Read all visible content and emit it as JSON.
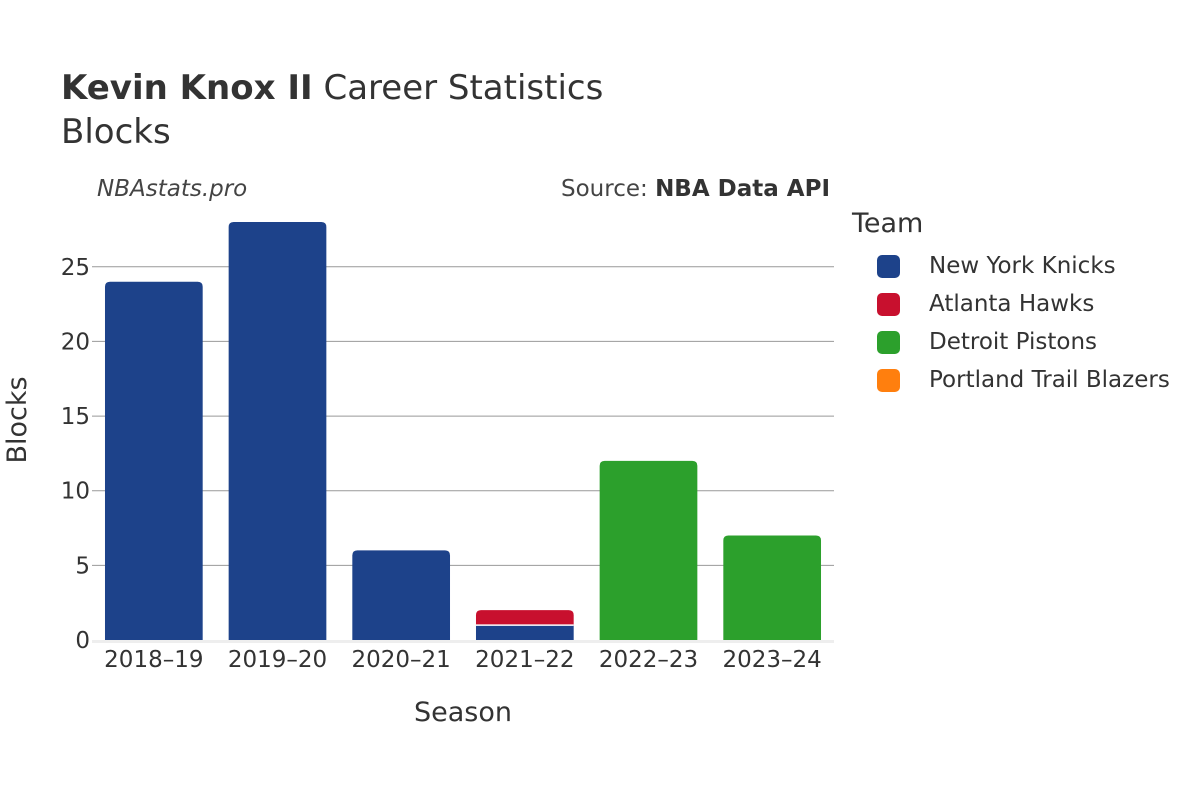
{
  "header": {
    "title_bold": "Kevin Knox II",
    "title_rest": "Career Statistics",
    "subtitle": "Blocks"
  },
  "watermark": "NBAstats.pro",
  "source": {
    "prefix": "Source: ",
    "name": "NBA Data API"
  },
  "legend": {
    "title": "Team",
    "items": [
      {
        "label": "New York Knicks",
        "color": "#1d428a"
      },
      {
        "label": "Atlanta Hawks",
        "color": "#c8102e"
      },
      {
        "label": "Detroit Pistons",
        "color": "#2ca02c"
      },
      {
        "label": "Portland Trail Blazers",
        "color": "#ff7f0e"
      }
    ]
  },
  "chart_data": {
    "type": "bar",
    "stacked": true,
    "categories": [
      "2018–19",
      "2019–20",
      "2020–21",
      "2021–22",
      "2022–23",
      "2023–24"
    ],
    "series": [
      {
        "name": "New York Knicks",
        "color": "#1d428a",
        "values": [
          24,
          28,
          6,
          1,
          0,
          0
        ]
      },
      {
        "name": "Atlanta Hawks",
        "color": "#c8102e",
        "values": [
          0,
          0,
          0,
          1,
          0,
          0
        ]
      },
      {
        "name": "Detroit Pistons",
        "color": "#2ca02c",
        "values": [
          0,
          0,
          0,
          0,
          12,
          7
        ]
      },
      {
        "name": "Portland Trail Blazers",
        "color": "#ff7f0e",
        "values": [
          0,
          0,
          0,
          0,
          0,
          0
        ]
      }
    ],
    "xlabel": "Season",
    "ylabel": "Blocks",
    "ylim": [
      0,
      28
    ],
    "yticks": [
      0,
      5,
      10,
      15,
      20,
      25
    ],
    "grid": true,
    "legend_position": "right"
  }
}
